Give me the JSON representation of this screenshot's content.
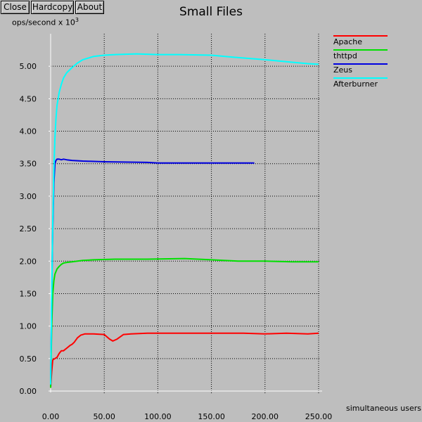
{
  "toolbar": {
    "close_label": "Close",
    "hardcopy_label": "Hardcopy",
    "about_label": "About"
  },
  "colors": {
    "background": "#bebebe",
    "grid": "#000000",
    "axis": "#ffffff"
  },
  "chart_data": {
    "type": "line",
    "title": "Small Files",
    "ylabel_prefix": "ops/second x 10",
    "ylabel_exp": "3",
    "xlabel": "simultaneous users",
    "xlim": [
      0,
      250
    ],
    "ylim": [
      0,
      5.5
    ],
    "xticks": [
      0,
      50,
      100,
      150,
      200,
      250
    ],
    "yticks": [
      0,
      0.5,
      1.0,
      1.5,
      2.0,
      2.5,
      3.0,
      3.5,
      4.0,
      4.5,
      5.0
    ],
    "xtick_labels": [
      "0.00",
      "50.00",
      "100.00",
      "150.00",
      "200.00",
      "250.00"
    ],
    "ytick_labels": [
      "0.00",
      "0.50",
      "1.00",
      "1.50",
      "2.00",
      "2.50",
      "3.00",
      "3.50",
      "4.00",
      "4.50",
      "5.00"
    ],
    "grid": true,
    "legend_position": "top-right",
    "series": [
      {
        "name": "Apache",
        "color": "#ff0000",
        "x": [
          0,
          1,
          2,
          4,
          6,
          8,
          10,
          12,
          15,
          18,
          20,
          22,
          25,
          28,
          32,
          40,
          50,
          55,
          58,
          62,
          68,
          75,
          90,
          120,
          150,
          180,
          200,
          220,
          240,
          250
        ],
        "y": [
          0.05,
          0.3,
          0.48,
          0.5,
          0.52,
          0.58,
          0.62,
          0.62,
          0.66,
          0.7,
          0.72,
          0.75,
          0.82,
          0.86,
          0.88,
          0.88,
          0.87,
          0.8,
          0.77,
          0.8,
          0.87,
          0.88,
          0.89,
          0.89,
          0.89,
          0.89,
          0.88,
          0.89,
          0.88,
          0.89
        ]
      },
      {
        "name": "thttpd",
        "color": "#00e000",
        "x": [
          0,
          1,
          2,
          3,
          4,
          6,
          8,
          10,
          12,
          15,
          20,
          25,
          30,
          40,
          60,
          90,
          125,
          150,
          175,
          200,
          225,
          250
        ],
        "y": [
          0.05,
          1.0,
          1.5,
          1.7,
          1.8,
          1.88,
          1.92,
          1.95,
          1.97,
          1.98,
          1.99,
          2.0,
          2.01,
          2.02,
          2.03,
          2.03,
          2.04,
          2.02,
          2.0,
          2.0,
          1.99,
          1.99
        ]
      },
      {
        "name": "Zeus",
        "color": "#0000e0",
        "x": [
          0,
          1,
          2,
          3,
          4,
          5,
          6,
          8,
          10,
          12,
          15,
          20,
          30,
          50,
          90,
          100,
          150,
          190
        ],
        "y": [
          0.1,
          1.5,
          2.5,
          3.2,
          3.5,
          3.55,
          3.57,
          3.57,
          3.56,
          3.57,
          3.56,
          3.55,
          3.54,
          3.53,
          3.52,
          3.51,
          3.51,
          3.51
        ]
      },
      {
        "name": "Afterburner",
        "color": "#00ffff",
        "x": [
          0,
          1,
          2,
          3,
          4,
          5,
          6,
          8,
          10,
          12,
          15,
          20,
          25,
          30,
          40,
          50,
          60,
          80,
          100,
          120,
          150,
          170,
          200,
          220,
          240,
          250
        ],
        "y": [
          0.1,
          1.5,
          2.6,
          3.4,
          3.9,
          4.2,
          4.4,
          4.6,
          4.72,
          4.82,
          4.9,
          4.98,
          5.05,
          5.1,
          5.15,
          5.17,
          5.18,
          5.19,
          5.18,
          5.18,
          5.17,
          5.14,
          5.1,
          5.07,
          5.04,
          5.03
        ]
      }
    ]
  }
}
